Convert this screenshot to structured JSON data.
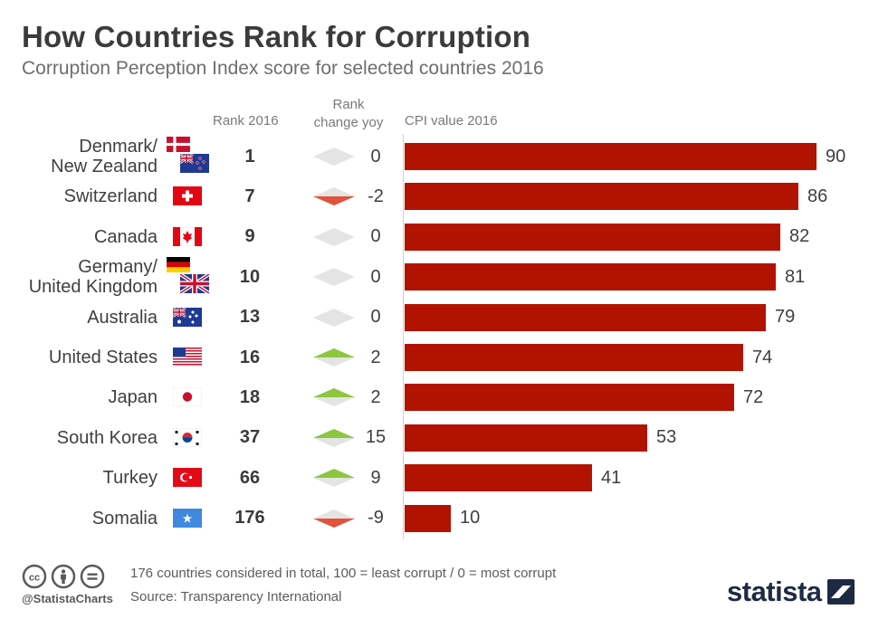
{
  "title": "How Countries Rank for Corruption",
  "subtitle": "Corruption Perception Index score for selected countries 2016",
  "columns": {
    "rank": "Rank 2016",
    "rank_change_line1": "Rank",
    "rank_change_line2": "change yoy",
    "cpi": "CPI value 2016"
  },
  "colors": {
    "bar": "#b21300",
    "up": "#8dc63f",
    "down": "#e2523c",
    "neutral": "#e4e4e4"
  },
  "chart_data": {
    "type": "bar",
    "orientation": "horizontal",
    "categories": [
      "Denmark/ New Zealand",
      "Switzerland",
      "Canada",
      "Germany/ United Kingdom",
      "Australia",
      "United States",
      "Japan",
      "South Korea",
      "Turkey",
      "Somalia"
    ],
    "series": [
      {
        "name": "CPI value 2016",
        "values": [
          90,
          86,
          82,
          81,
          79,
          74,
          72,
          53,
          41,
          10
        ]
      }
    ],
    "rank_2016": [
      1,
      7,
      9,
      10,
      13,
      16,
      18,
      37,
      66,
      176
    ],
    "rank_change_yoy": [
      0,
      -2,
      0,
      0,
      0,
      2,
      2,
      15,
      9,
      -9
    ],
    "xlim": [
      0,
      100
    ]
  },
  "rows": [
    {
      "country_lines": [
        "Denmark/",
        "New Zealand"
      ],
      "flags": [
        "denmark-flag",
        "new-zealand-flag"
      ],
      "rank": "1",
      "change": "0",
      "trend": "neutral",
      "cpi": "90"
    },
    {
      "country_lines": [
        "Switzerland"
      ],
      "flags": [
        "switzerland-flag"
      ],
      "rank": "7",
      "change": "-2",
      "trend": "down",
      "cpi": "86"
    },
    {
      "country_lines": [
        "Canada"
      ],
      "flags": [
        "canada-flag"
      ],
      "rank": "9",
      "change": "0",
      "trend": "neutral",
      "cpi": "82"
    },
    {
      "country_lines": [
        "Germany/",
        "United Kingdom"
      ],
      "flags": [
        "germany-flag",
        "united-kingdom-flag"
      ],
      "rank": "10",
      "change": "0",
      "trend": "neutral",
      "cpi": "81"
    },
    {
      "country_lines": [
        "Australia"
      ],
      "flags": [
        "australia-flag"
      ],
      "rank": "13",
      "change": "0",
      "trend": "neutral",
      "cpi": "79"
    },
    {
      "country_lines": [
        "United States"
      ],
      "flags": [
        "united-states-flag"
      ],
      "rank": "16",
      "change": "2",
      "trend": "up",
      "cpi": "74"
    },
    {
      "country_lines": [
        "Japan"
      ],
      "flags": [
        "japan-flag"
      ],
      "rank": "18",
      "change": "2",
      "trend": "up",
      "cpi": "72"
    },
    {
      "country_lines": [
        "South Korea"
      ],
      "flags": [
        "south-korea-flag"
      ],
      "rank": "37",
      "change": "15",
      "trend": "up",
      "cpi": "53"
    },
    {
      "country_lines": [
        "Turkey"
      ],
      "flags": [
        "turkey-flag"
      ],
      "rank": "66",
      "change": "9",
      "trend": "up",
      "cpi": "41"
    },
    {
      "country_lines": [
        "Somalia"
      ],
      "flags": [
        "somalia-flag"
      ],
      "rank": "176",
      "change": "-9",
      "trend": "down",
      "cpi": "10"
    }
  ],
  "footer": {
    "handle": "@StatistaCharts",
    "note": "176 countries considered in total, 100 = least corrupt / 0 = most corrupt",
    "source": "Source: Transparency International",
    "license_icons": [
      "creative-commons-icon",
      "attribution-icon",
      "no-derivatives-icon"
    ],
    "logo_text": "statista"
  }
}
